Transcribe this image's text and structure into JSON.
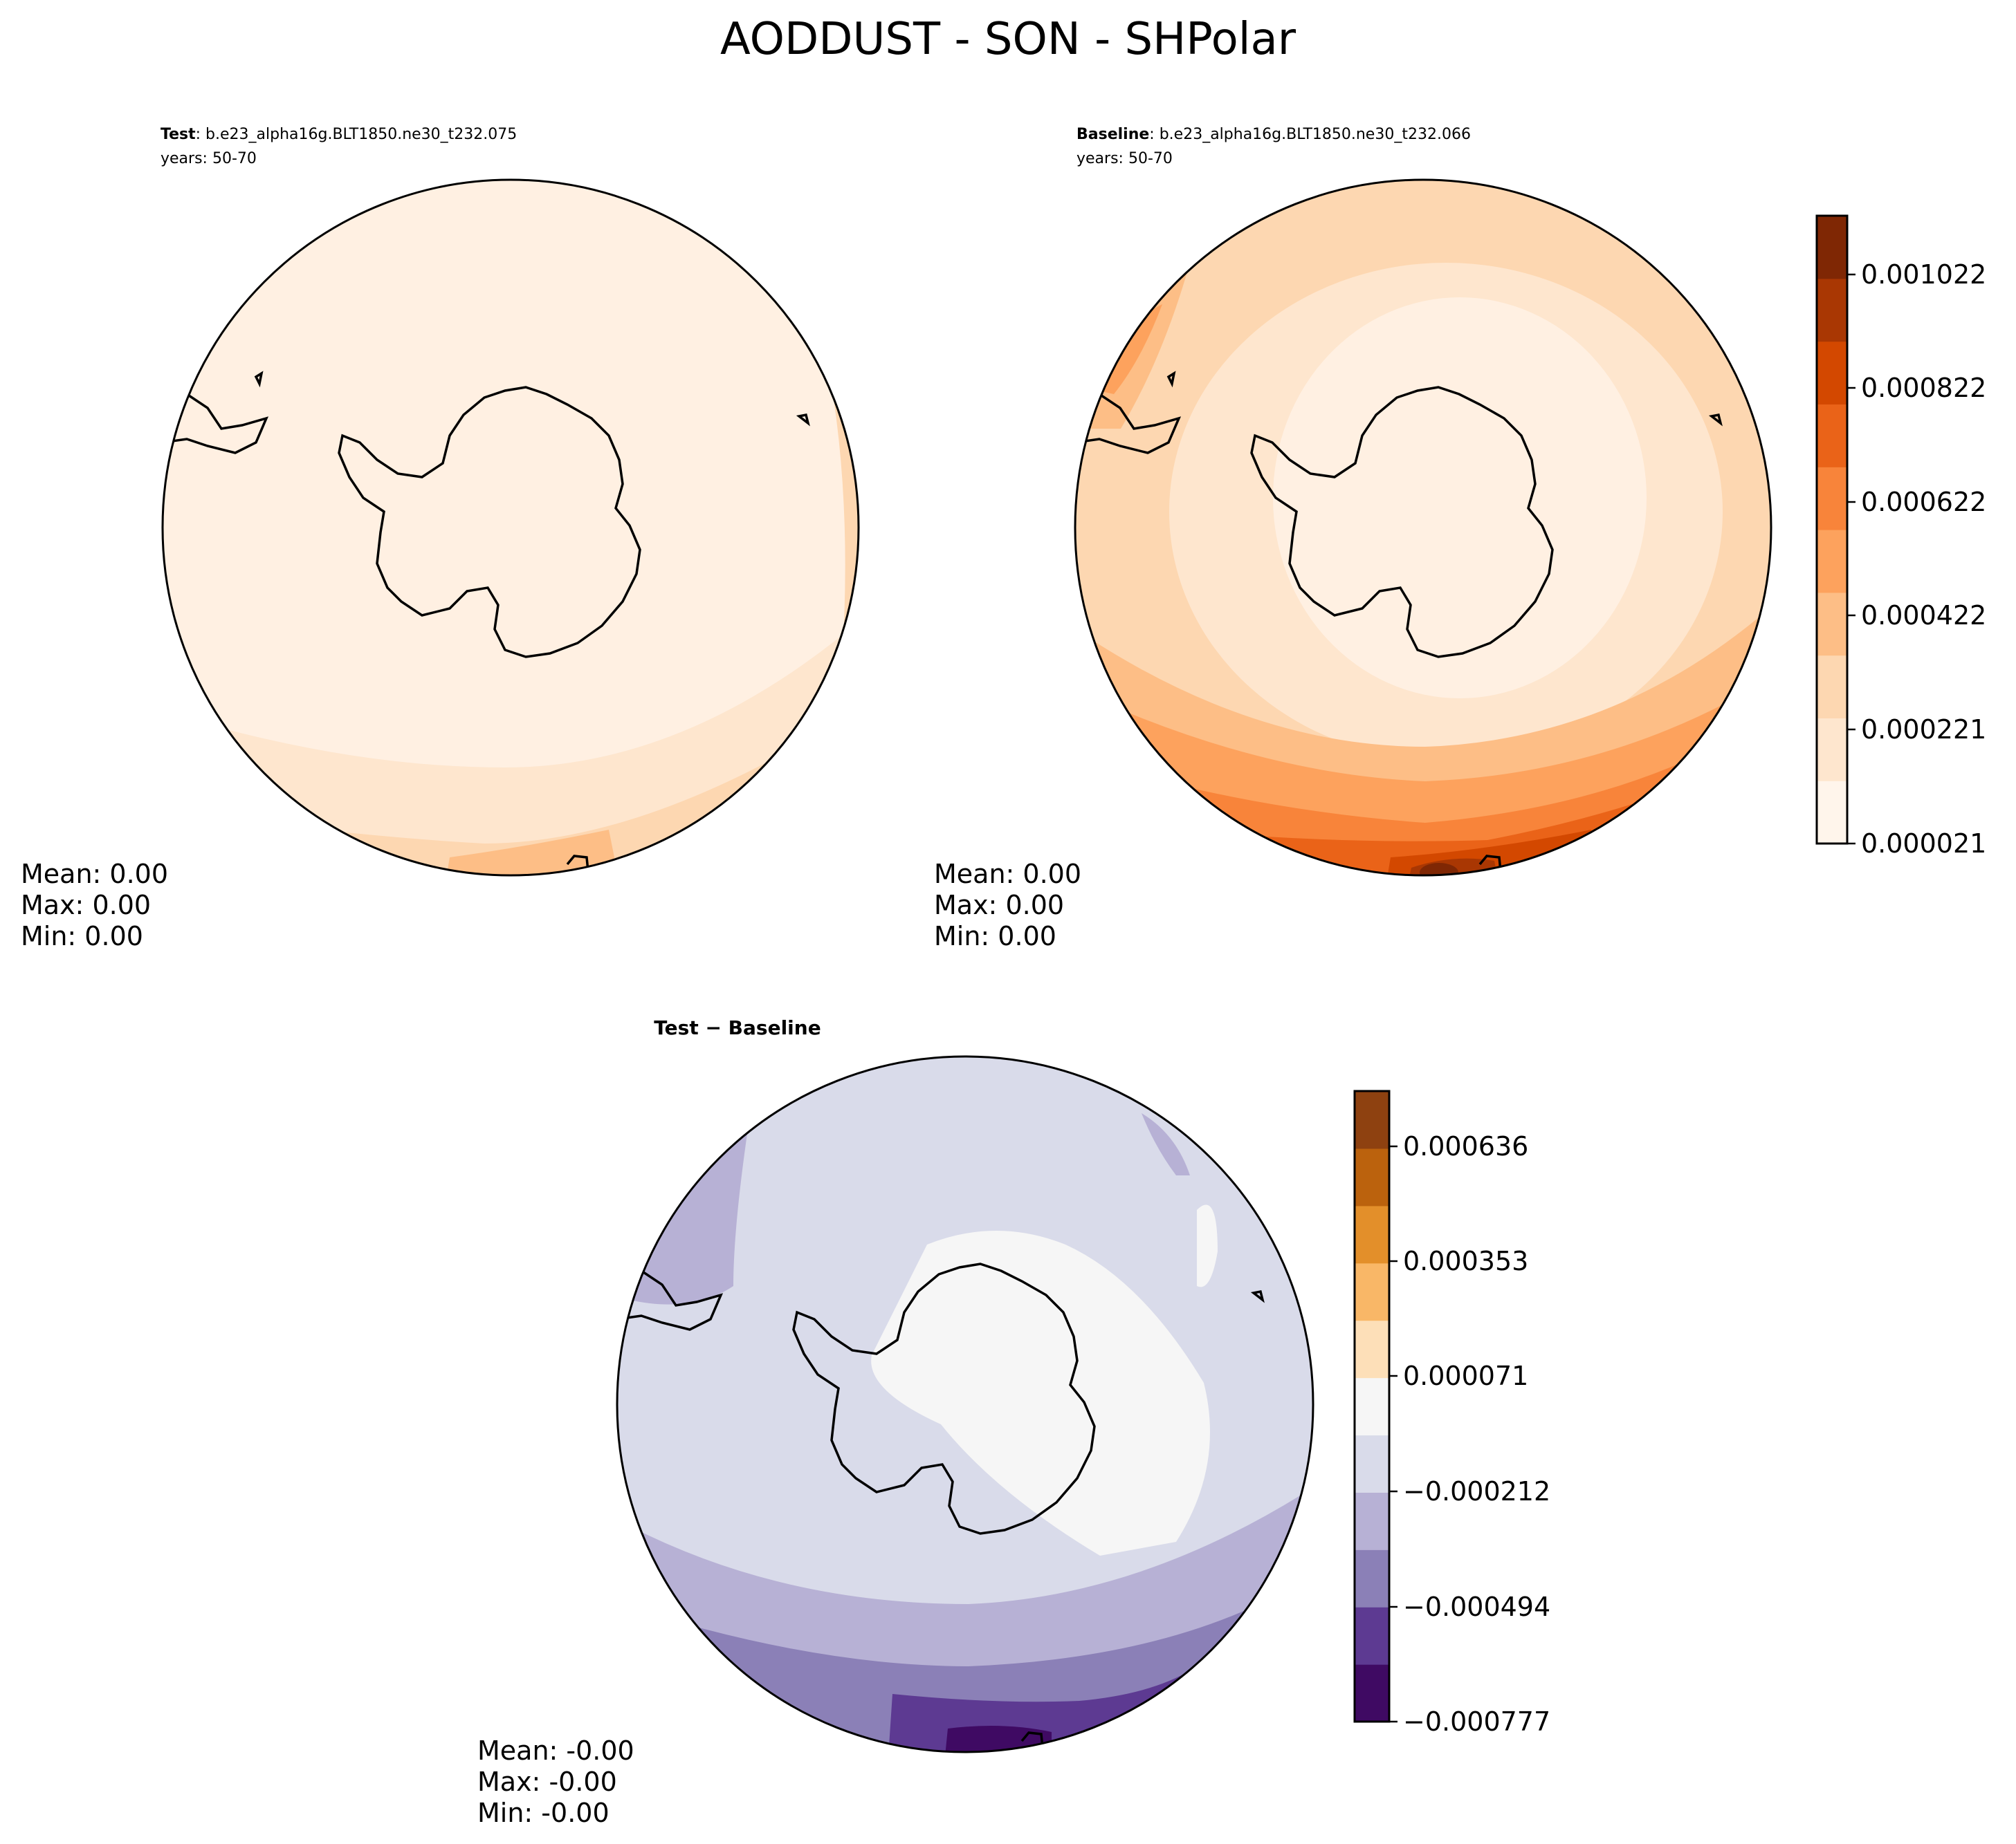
{
  "figure": {
    "title": "AODDUST - SON - SHPolar"
  },
  "panels": {
    "test": {
      "label_bold": "Test",
      "label_rest": ": b.e23_alpha16g.BLT1850.ne30_t232.075",
      "years": "years: 50-70",
      "stats": {
        "mean": "Mean:  0.00",
        "max": "Max:  0.00",
        "min": "Min:  0.00"
      }
    },
    "baseline": {
      "label_bold": "Baseline",
      "label_rest": ": b.e23_alpha16g.BLT1850.ne30_t232.066",
      "years": "years: 50-70",
      "stats": {
        "mean": "Mean:  0.00",
        "max": "Max:  0.00",
        "min": "Min:  0.00"
      }
    },
    "diff": {
      "label": "Test − Baseline",
      "stats": {
        "mean": "Mean: -0.00",
        "max": "Max: -0.00",
        "min": "Min: -0.00"
      }
    }
  },
  "colorbars": {
    "main": {
      "ticks": [
        "0.001022",
        "0.000822",
        "0.000622",
        "0.000422",
        "0.000221",
        "0.000021"
      ],
      "colors": [
        "#fff5eb",
        "#fee6ce",
        "#fdd7b1",
        "#fdbe86",
        "#fda25d",
        "#f8843a",
        "#ea6318",
        "#d34800",
        "#a93703",
        "#7f2704"
      ]
    },
    "diff": {
      "ticks": [
        "0.000636",
        "0.000353",
        "0.000071",
        "−0.000212",
        "−0.000494",
        "−0.000777"
      ],
      "colors": [
        "#3f0a63",
        "#5d3a92",
        "#8b80b7",
        "#b7b1d5",
        "#d9dbea",
        "#f6f6f6",
        "#fddfb8",
        "#f9b767",
        "#e38f2a",
        "#bb620d",
        "#8e4110"
      ]
    }
  },
  "map_colors": {
    "test_bg": "#fff0e2",
    "test_mid": "#fee6ce",
    "test_edge": "#fdd7b1",
    "base_bg": "#fdd7b1",
    "coast": "#000000"
  }
}
